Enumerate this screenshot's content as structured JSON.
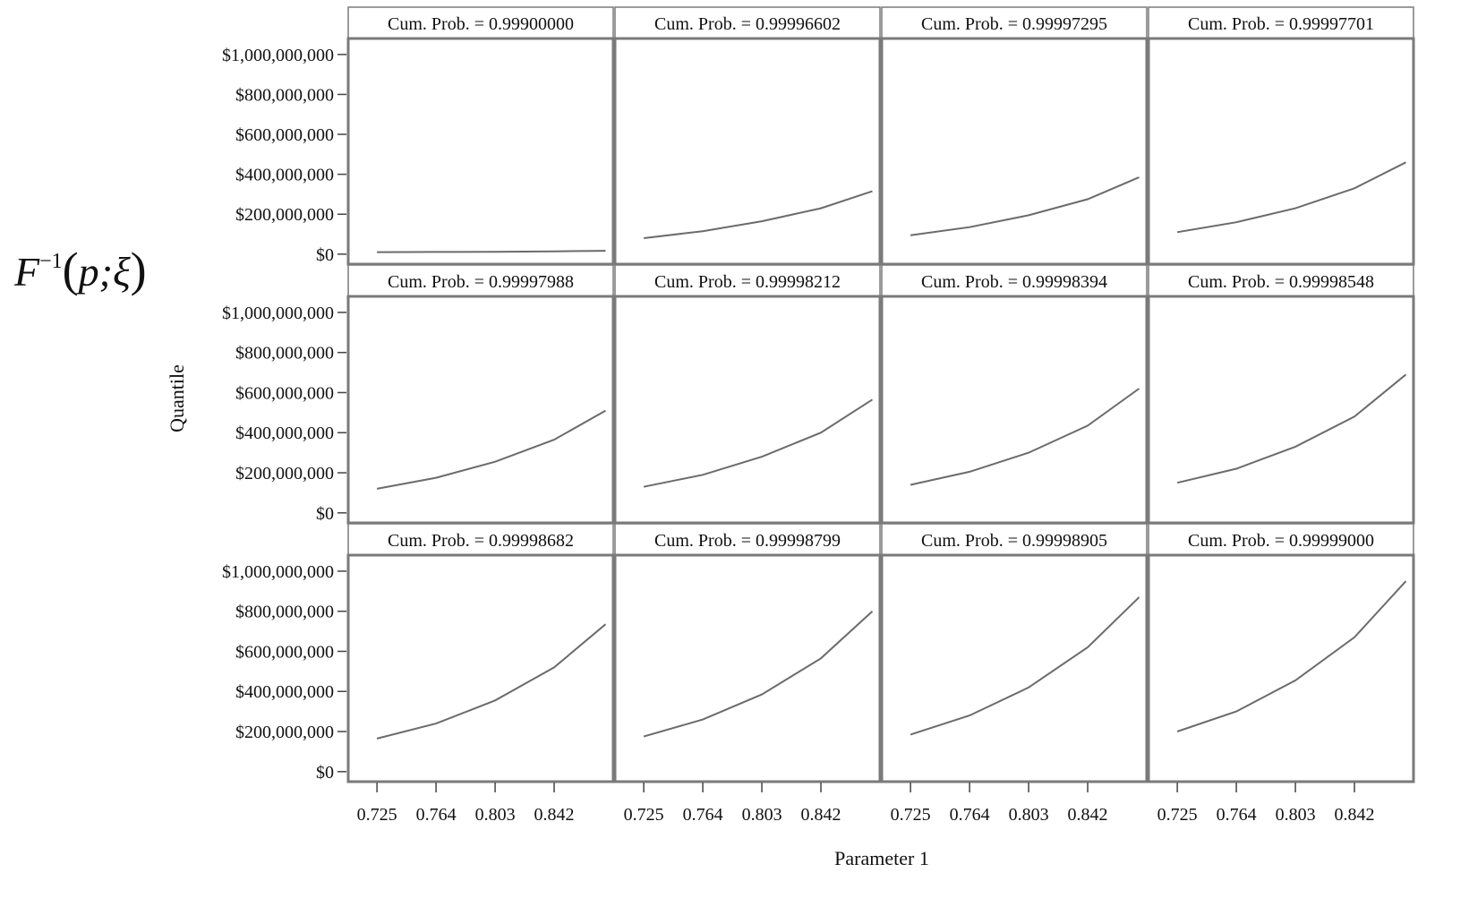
{
  "formula": {
    "base": "F",
    "superscript": "−1",
    "open": "(",
    "args": "p;ξ",
    "close": ")"
  },
  "chart_data": {
    "type": "line",
    "xlabel": "Parameter 1",
    "ylabel": "Quantile",
    "x_ticks": [
      "0.725",
      "0.764",
      "0.803",
      "0.842"
    ],
    "x_tick_values": [
      0.725,
      0.764,
      0.803,
      0.842
    ],
    "y_ticks": [
      "$0",
      "$200,000,000",
      "$400,000,000",
      "$600,000,000",
      "$800,000,000",
      "$1,000,000,000"
    ],
    "y_tick_values": [
      0,
      200000000,
      400000000,
      600000000,
      800000000,
      1000000000
    ],
    "xlim": [
      0.706,
      0.881
    ],
    "ylim": [
      -50000000,
      1080000000
    ],
    "grid": false,
    "line_color": "#6b6b6b",
    "frame_color": "#7a7a7a",
    "x": [
      0.725,
      0.764,
      0.803,
      0.842,
      0.876
    ],
    "panels": [
      {
        "label": "Cum. Prob. = 0.99900000",
        "values": [
          10000000,
          11000000,
          12000000,
          14000000,
          17000000
        ]
      },
      {
        "label": "Cum. Prob. = 0.99996602",
        "values": [
          80000000,
          115000000,
          165000000,
          230000000,
          315000000
        ]
      },
      {
        "label": "Cum. Prob. = 0.99997295",
        "values": [
          95000000,
          135000000,
          195000000,
          275000000,
          385000000
        ]
      },
      {
        "label": "Cum. Prob. = 0.99997701",
        "values": [
          110000000,
          160000000,
          230000000,
          330000000,
          460000000
        ]
      },
      {
        "label": "Cum. Prob. = 0.99997988",
        "values": [
          120000000,
          175000000,
          255000000,
          365000000,
          510000000
        ]
      },
      {
        "label": "Cum. Prob. = 0.99998212",
        "values": [
          130000000,
          190000000,
          280000000,
          400000000,
          565000000
        ]
      },
      {
        "label": "Cum. Prob. = 0.99998394",
        "values": [
          140000000,
          205000000,
          300000000,
          435000000,
          620000000
        ]
      },
      {
        "label": "Cum. Prob. = 0.99998548",
        "values": [
          150000000,
          220000000,
          330000000,
          480000000,
          690000000
        ]
      },
      {
        "label": "Cum. Prob. = 0.99998682",
        "values": [
          165000000,
          240000000,
          355000000,
          520000000,
          735000000
        ]
      },
      {
        "label": "Cum. Prob. = 0.99998799",
        "values": [
          175000000,
          260000000,
          385000000,
          565000000,
          800000000
        ]
      },
      {
        "label": "Cum. Prob. = 0.99998905",
        "values": [
          185000000,
          280000000,
          420000000,
          620000000,
          870000000
        ]
      },
      {
        "label": "Cum. Prob. = 0.99999000",
        "values": [
          200000000,
          300000000,
          455000000,
          670000000,
          950000000
        ]
      }
    ]
  }
}
